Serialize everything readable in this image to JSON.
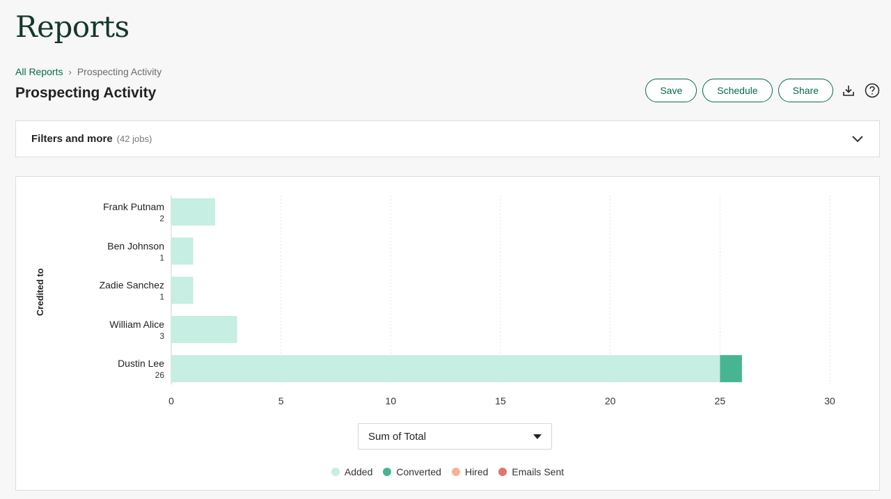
{
  "header": {
    "title": "Reports"
  },
  "breadcrumb": {
    "root": "All Reports",
    "separator": "›",
    "current": "Prospecting Activity"
  },
  "report": {
    "title": "Prospecting Activity"
  },
  "actions": {
    "save": "Save",
    "schedule": "Schedule",
    "share": "Share",
    "download_icon": "download-icon",
    "help_icon": "help-icon"
  },
  "filters": {
    "title": "Filters and more",
    "count": "(42 jobs)"
  },
  "measure": {
    "selected": "Sum of Total"
  },
  "colors": {
    "added": "#c6eee2",
    "converted": "#47b592",
    "hired": "#f6b390",
    "emails_sent": "#e4736c",
    "brand": "#046b46"
  },
  "chart_data": {
    "type": "bar",
    "orientation": "horizontal",
    "stacked": true,
    "ylabel": "Credited to",
    "categories": [
      "Frank Putnam",
      "Ben Johnson",
      "Zadie Sanchez",
      "William Alice",
      "Dustin Lee"
    ],
    "totals": [
      "2",
      "1",
      "1",
      "3",
      "26"
    ],
    "series": [
      {
        "name": "Added",
        "values": [
          2,
          1,
          1,
          3,
          25
        ]
      },
      {
        "name": "Converted",
        "values": [
          0,
          0,
          0,
          0,
          1
        ]
      },
      {
        "name": "Hired",
        "values": [
          0,
          0,
          0,
          0,
          0
        ]
      },
      {
        "name": "Emails Sent",
        "values": [
          0,
          0,
          0,
          0,
          0
        ]
      }
    ],
    "xlim": [
      0,
      30
    ],
    "xticks": [
      0,
      5,
      10,
      15,
      20,
      25,
      30
    ],
    "grid": "vertical-dashed",
    "legend": "bottom-center"
  }
}
